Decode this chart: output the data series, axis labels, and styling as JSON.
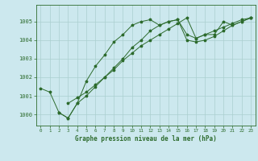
{
  "title": "Graphe pression niveau de la mer (hPa)",
  "background_color": "#cce8ee",
  "line_color": "#2d6b2d",
  "grid_color": "#aacfcf",
  "xlim": [
    -0.5,
    23.5
  ],
  "ylim": [
    999.4,
    1005.9
  ],
  "yticks": [
    1000,
    1001,
    1002,
    1003,
    1004,
    1005
  ],
  "xticks": [
    0,
    1,
    2,
    3,
    4,
    5,
    6,
    7,
    8,
    9,
    10,
    11,
    12,
    13,
    14,
    15,
    16,
    17,
    18,
    19,
    20,
    21,
    22,
    23
  ],
  "series1_x": [
    0,
    1,
    2,
    3,
    4,
    5,
    6,
    7,
    8,
    9,
    10,
    11,
    12,
    13,
    14,
    15,
    16,
    17,
    18,
    19,
    20,
    21,
    22,
    23
  ],
  "series1_y": [
    1001.4,
    1001.2,
    1000.1,
    999.8,
    1000.6,
    1001.8,
    1002.6,
    1003.2,
    1003.9,
    1004.3,
    1004.8,
    1005.0,
    1005.1,
    1004.8,
    1005.0,
    1005.1,
    1004.3,
    1004.1,
    1004.3,
    1004.3,
    1005.0,
    1004.8,
    1005.0,
    1005.2
  ],
  "series2_x": [
    2,
    3,
    4,
    5,
    6,
    7,
    8,
    9,
    10,
    11,
    12,
    13,
    14,
    15,
    16,
    17,
    18,
    19,
    20,
    21,
    22,
    23
  ],
  "series2_y": [
    1000.1,
    999.8,
    1000.6,
    1001.0,
    1001.5,
    1002.0,
    1002.5,
    1003.0,
    1003.6,
    1004.0,
    1004.5,
    1004.8,
    1005.0,
    1005.1,
    1004.0,
    1003.9,
    1004.0,
    1004.2,
    1004.5,
    1004.8,
    1005.0,
    1005.2
  ],
  "series3_x": [
    3,
    4,
    5,
    6,
    7,
    8,
    9,
    10,
    11,
    12,
    13,
    14,
    15,
    16,
    17,
    18,
    19,
    20,
    21,
    22,
    23
  ],
  "series3_y": [
    1000.6,
    1000.9,
    1001.2,
    1001.6,
    1002.0,
    1002.4,
    1002.9,
    1003.3,
    1003.7,
    1004.0,
    1004.3,
    1004.6,
    1004.9,
    1005.2,
    1004.1,
    1004.3,
    1004.5,
    1004.7,
    1004.9,
    1005.1,
    1005.2
  ]
}
